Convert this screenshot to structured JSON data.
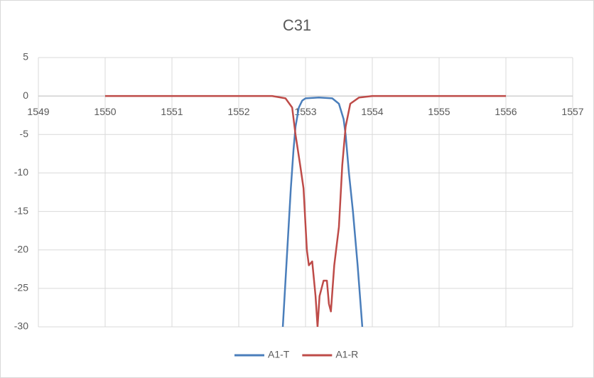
{
  "chart_data": {
    "type": "line",
    "title": "C31",
    "xlim": [
      1549,
      1557
    ],
    "xticks": [
      1549,
      1550,
      1551,
      1552,
      1553,
      1554,
      1555,
      1556,
      1557
    ],
    "ylim": [
      -30,
      5
    ],
    "yticks": [
      5,
      0,
      -5,
      -10,
      -15,
      -20,
      -25,
      -30
    ],
    "grid": true,
    "legend": "bottom",
    "series": [
      {
        "name": "A1-T",
        "color": "#4a7ebb",
        "x": [
          1552.66,
          1552.7,
          1552.74,
          1552.78,
          1552.82,
          1552.85,
          1552.9,
          1552.95,
          1553.0,
          1553.2,
          1553.4,
          1553.5,
          1553.57,
          1553.6,
          1553.65,
          1553.71,
          1553.78,
          1553.85
        ],
        "values": [
          -30,
          -24,
          -18,
          -12,
          -7,
          -4,
          -1.5,
          -0.6,
          -0.3,
          -0.2,
          -0.3,
          -1,
          -3,
          -5,
          -10,
          -15,
          -22,
          -30
        ]
      },
      {
        "name": "A1-R",
        "color": "#be4b48",
        "x": [
          1550,
          1552.5,
          1552.7,
          1552.8,
          1552.85,
          1552.92,
          1552.97,
          1553.02,
          1553.05,
          1553.1,
          1553.15,
          1553.18,
          1553.21,
          1553.27,
          1553.32,
          1553.35,
          1553.38,
          1553.43,
          1553.5,
          1553.55,
          1553.6,
          1553.67,
          1553.8,
          1554,
          1556
        ],
        "values": [
          0,
          0,
          -0.3,
          -1.5,
          -5,
          -9,
          -12,
          -20,
          -22,
          -21.5,
          -26,
          -30,
          -26,
          -24,
          -24,
          -27,
          -28,
          -22,
          -17,
          -9,
          -4,
          -1,
          -0.2,
          0,
          0
        ]
      }
    ]
  }
}
